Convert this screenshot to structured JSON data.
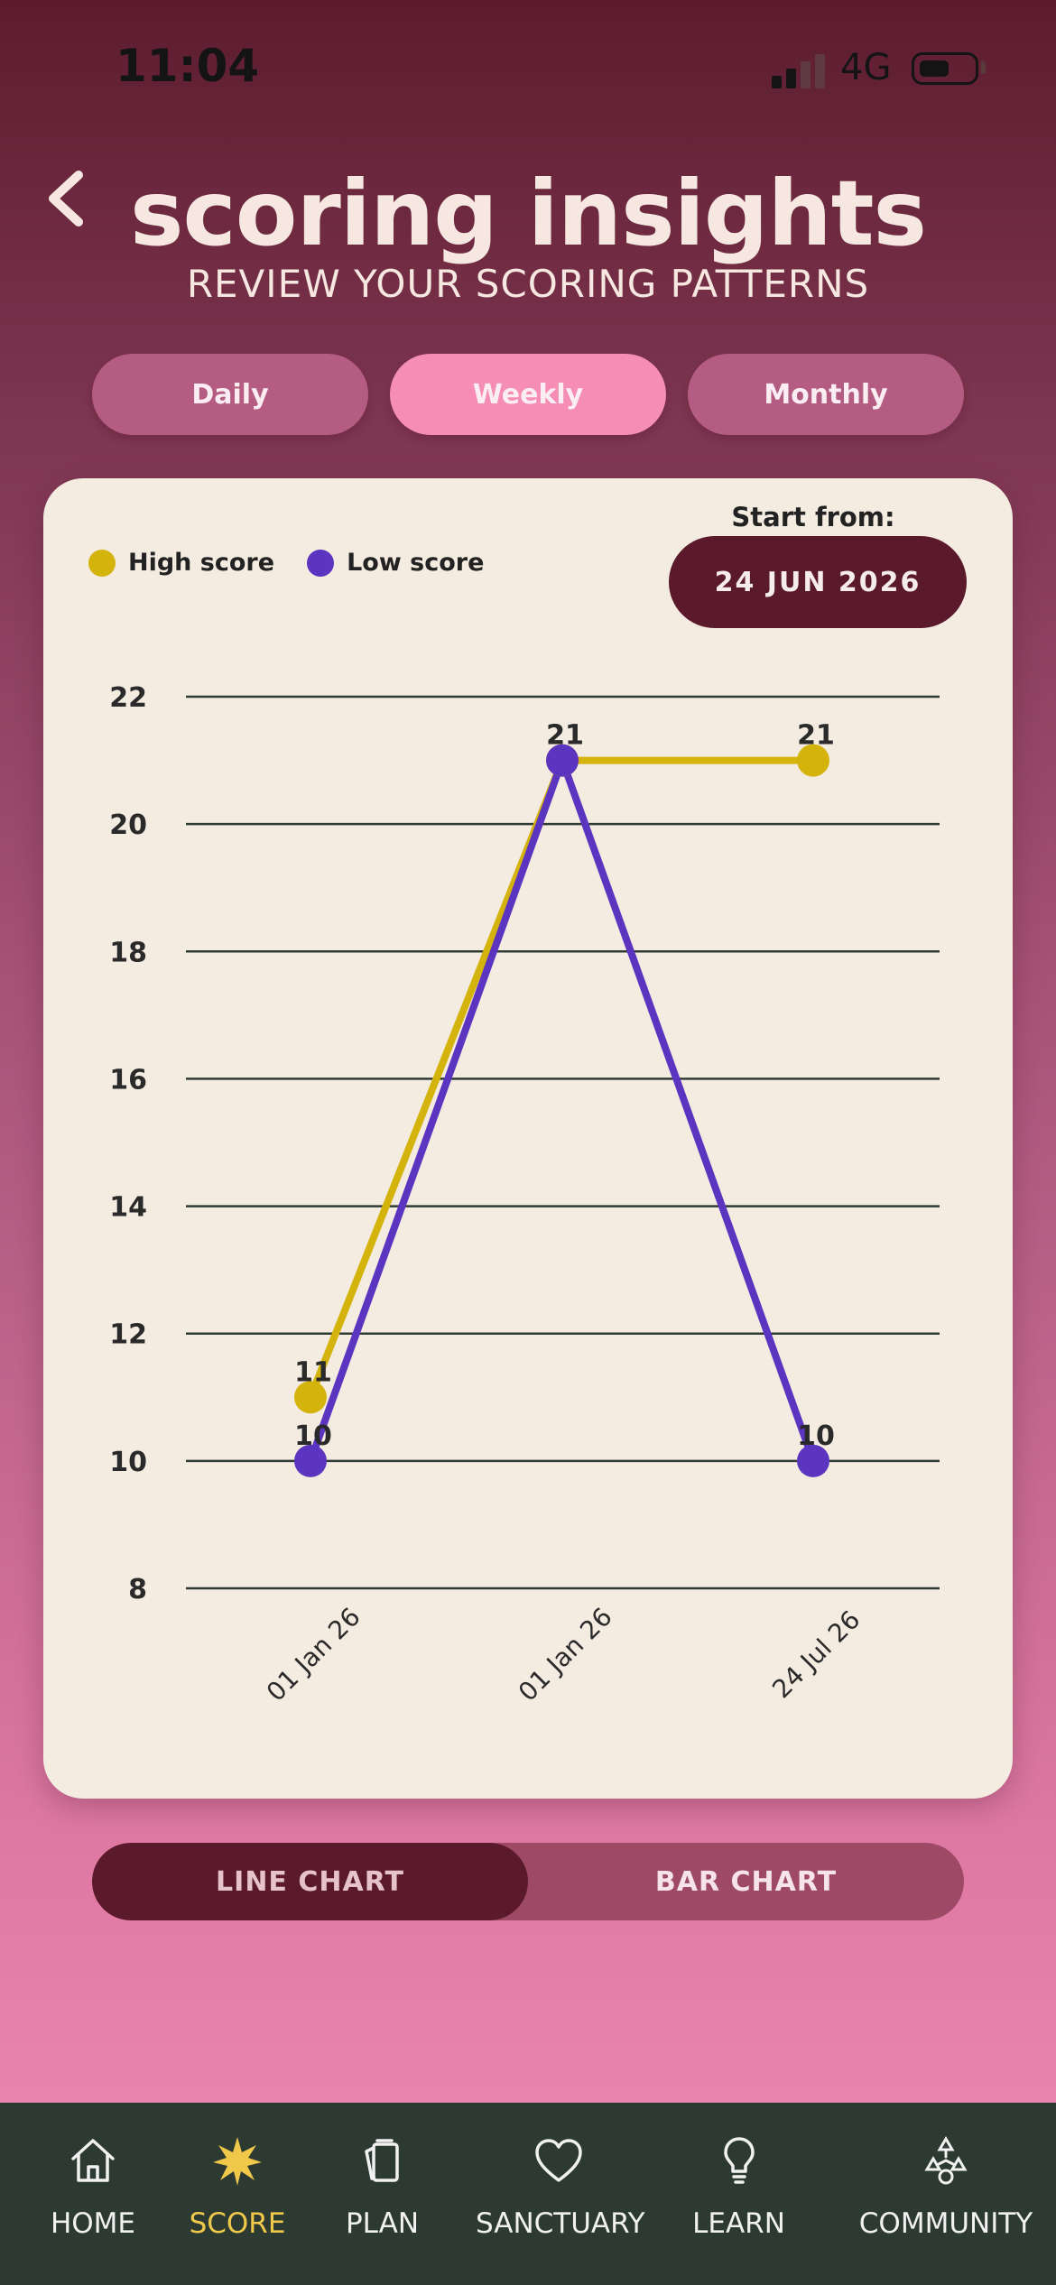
{
  "status_bar": {
    "time": "11:04",
    "network": "4G"
  },
  "header": {
    "title": "scoring insights",
    "subtitle": "REVIEW YOUR SCORING PATTERNS"
  },
  "period_tabs": [
    {
      "label": "Daily",
      "active": false
    },
    {
      "label": "Weekly",
      "active": true
    },
    {
      "label": "Monthly",
      "active": false
    }
  ],
  "legend": [
    {
      "label": "High score",
      "color": "#d4b40c"
    },
    {
      "label": "Low score",
      "color": "#5b35c0"
    }
  ],
  "start_from": {
    "label": "Start from:",
    "date": "24 JUN 2026"
  },
  "chart_data": {
    "type": "line",
    "title": "",
    "xlabel": "",
    "ylabel": "",
    "x": [
      "01 Jan 26",
      "01 Jan 26",
      "24 Jul 26"
    ],
    "ylim": [
      8,
      22
    ],
    "yticks": [
      8,
      10,
      12,
      14,
      16,
      18,
      20,
      22
    ],
    "grid": true,
    "legend_position": "top-left",
    "series": [
      {
        "name": "High score",
        "color": "#d4b40c",
        "values": [
          11,
          21,
          21
        ]
      },
      {
        "name": "Low score",
        "color": "#5b35c0",
        "values": [
          10,
          21,
          10
        ]
      }
    ]
  },
  "chart_toggle": [
    {
      "label": "LINE CHART",
      "active": true
    },
    {
      "label": "BAR CHART",
      "active": false
    }
  ],
  "nav": [
    {
      "label": "HOME",
      "icon": "home-icon",
      "active": false
    },
    {
      "label": "SCORE",
      "icon": "score-icon",
      "active": true
    },
    {
      "label": "PLAN",
      "icon": "plan-icon",
      "active": false
    },
    {
      "label": "SANCTUARY",
      "icon": "heart-icon",
      "active": false
    },
    {
      "label": "LEARN",
      "icon": "lightbulb-icon",
      "active": false
    },
    {
      "label": "COMMUNITY",
      "icon": "community-icon",
      "active": false
    }
  ]
}
